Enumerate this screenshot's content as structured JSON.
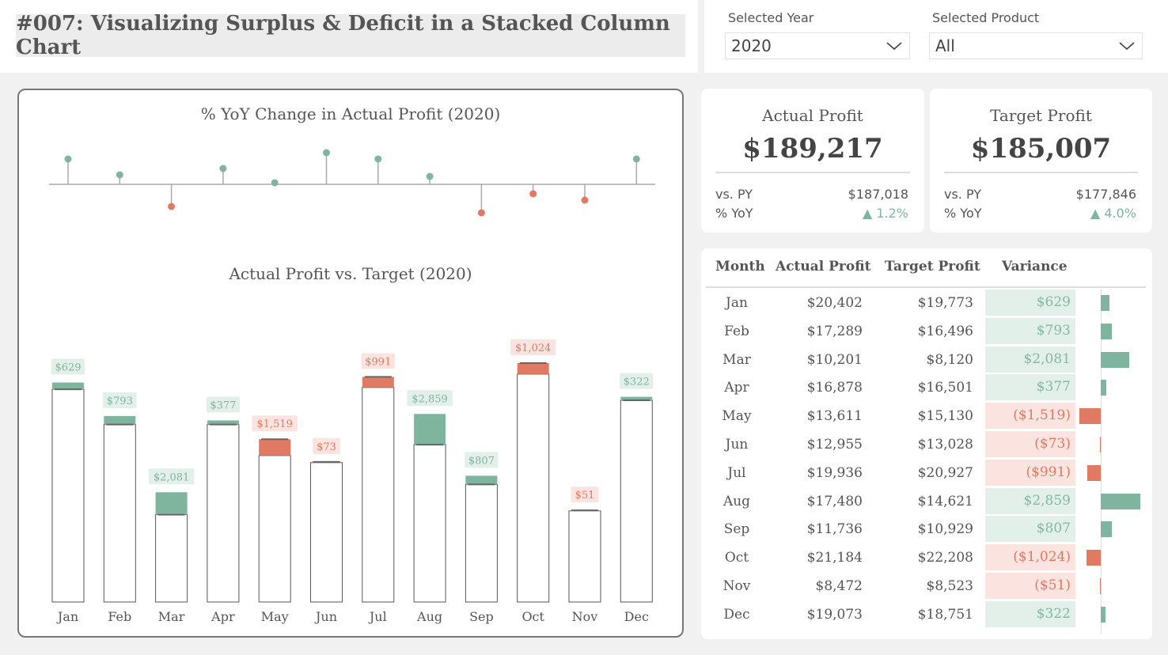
{
  "header": {
    "title": "#007: Visualizing Surplus & Deficit in a Stacked Column Chart"
  },
  "filters": {
    "year_label": "Selected Year",
    "year_value": "2020",
    "product_label": "Selected Product",
    "product_value": "All"
  },
  "kpis": {
    "actual": {
      "label": "Actual Profit",
      "value": "$189,217",
      "vs_py_label": "vs. PY",
      "vs_py_value": "$187,018",
      "yoy_label": "% YoY",
      "yoy_value": "▲ 1.2%"
    },
    "target": {
      "label": "Target Profit",
      "value": "$185,007",
      "vs_py_label": "vs. PY",
      "vs_py_value": "$177,846",
      "yoy_label": "% YoY",
      "yoy_value": "▲ 4.0%"
    }
  },
  "colors": {
    "surplus": "#7fb59e",
    "deficit": "#e07a62",
    "surplus_bg": "#e2f0e9",
    "deficit_bg": "#fbe3df"
  },
  "table": {
    "headers": [
      "Month",
      "Actual Profit",
      "Target Profit",
      "Variance"
    ],
    "rows": [
      {
        "month": "Jan",
        "actual": "$20,402",
        "target": "$19,773",
        "variance": "$629"
      },
      {
        "month": "Feb",
        "actual": "$17,289",
        "target": "$16,496",
        "variance": "$793"
      },
      {
        "month": "Mar",
        "actual": "$10,201",
        "target": "$8,120",
        "variance": "$2,081"
      },
      {
        "month": "Apr",
        "actual": "$16,878",
        "target": "$16,501",
        "variance": "$377"
      },
      {
        "month": "May",
        "actual": "$13,611",
        "target": "$15,130",
        "variance": "($1,519)"
      },
      {
        "month": "Jun",
        "actual": "$12,955",
        "target": "$13,028",
        "variance": "($73)"
      },
      {
        "month": "Jul",
        "actual": "$19,936",
        "target": "$20,927",
        "variance": "($991)"
      },
      {
        "month": "Aug",
        "actual": "$17,480",
        "target": "$14,621",
        "variance": "$2,859"
      },
      {
        "month": "Sep",
        "actual": "$11,736",
        "target": "$10,929",
        "variance": "$807"
      },
      {
        "month": "Oct",
        "actual": "$21,184",
        "target": "$22,208",
        "variance": "($1,024)"
      },
      {
        "month": "Nov",
        "actual": "$8,472",
        "target": "$8,523",
        "variance": "($51)"
      },
      {
        "month": "Dec",
        "actual": "$19,073",
        "target": "$18,751",
        "variance": "$322"
      }
    ]
  },
  "chart_data": [
    {
      "type": "scatter",
      "title": "% YoY Change in Actual Profit (2020)",
      "categories": [
        "Jan",
        "Feb",
        "Mar",
        "Apr",
        "May",
        "Jun",
        "Jul",
        "Aug",
        "Sep",
        "Oct",
        "Nov",
        "Dec"
      ],
      "values": [
        8,
        3,
        -7,
        5,
        0.5,
        10,
        8,
        2.5,
        -9,
        -3,
        -5,
        8
      ],
      "grid": false
    },
    {
      "type": "bar",
      "title": "Actual Profit vs. Target (2020)",
      "categories": [
        "Jan",
        "Feb",
        "Mar",
        "Apr",
        "May",
        "Jun",
        "Jul",
        "Aug",
        "Sep",
        "Oct",
        "Nov",
        "Dec"
      ],
      "series": [
        {
          "name": "Actual Profit",
          "values": [
            20402,
            17289,
            10201,
            16878,
            13611,
            12955,
            19936,
            17480,
            11736,
            21184,
            8472,
            19073
          ]
        },
        {
          "name": "Target Profit",
          "values": [
            19773,
            16496,
            8120,
            16501,
            15130,
            13028,
            20927,
            14621,
            10929,
            22208,
            8523,
            18751
          ]
        }
      ],
      "variance_labels": [
        "$629",
        "$793",
        "$2,081",
        "$377",
        "$1,519",
        "$73",
        "$991",
        "$2,859",
        "$807",
        "$1,024",
        "$51",
        "$322"
      ],
      "ylim": [
        0,
        23000
      ],
      "grid": false
    }
  ]
}
